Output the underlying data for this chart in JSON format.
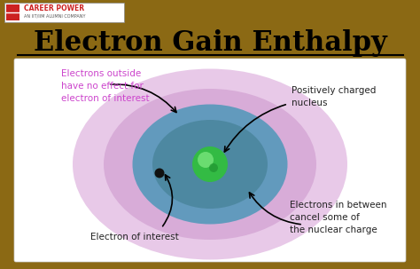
{
  "bg_color": "#8B6914",
  "title": "Electron Gain Enthalpy",
  "title_color": "#000000",
  "title_fontsize": 22,
  "outer_glow_color": "#CC88CC",
  "inner_shell_color": "#5599BB",
  "nucleus_color": "#44CC55",
  "electron_color": "#111111",
  "label_outside_text": "Electrons outside\nhave no effect for\nelectron of interest",
  "label_outside_color": "#CC44CC",
  "label_nucleus_text": "Positively charged\nnucleus",
  "label_nucleus_color": "#222222",
  "label_electron_text": "Electron of interest",
  "label_electron_color": "#222222",
  "label_between_text": "Electrons in between\ncancel some of\nthe nuclear charge",
  "label_between_color": "#222222",
  "logo_text": "CAREER POWER",
  "logo_subtext": "AN IIT/IIM ALUMNI COMPANY"
}
